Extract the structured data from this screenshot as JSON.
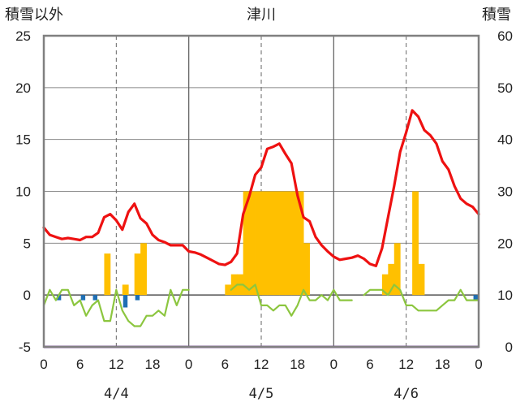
{
  "chart_data": {
    "type": "combo",
    "title": "津川",
    "left_axis_label": "積雪以外",
    "right_axis_label": "積雪",
    "left_ylim": [
      -5,
      25
    ],
    "left_ticks": [
      "25",
      "20",
      "15",
      "10",
      "5",
      "0",
      "-5"
    ],
    "right_ylim": [
      0,
      60
    ],
    "right_ticks": [
      "60",
      "50",
      "40",
      "30",
      "20",
      "10",
      "0"
    ],
    "x_tick_labels": [
      "0",
      "6",
      "12",
      "18",
      "0",
      "6",
      "12",
      "18",
      "0",
      "6",
      "12",
      "18",
      "0"
    ],
    "date_labels": [
      "4/4",
      "4/5",
      "4/6"
    ],
    "colors": {
      "temperature": "#ee1111",
      "snow_depth": "#8cc63f",
      "snowfall": "#ffc000",
      "precipitation": "#1e6fb4",
      "baseline": "#7b3fa0",
      "frame": "#808080"
    },
    "series": [
      {
        "name": "temperature",
        "type": "line",
        "axis": "left",
        "values": [
          6.5,
          5.8,
          5.6,
          5.4,
          5.5,
          5.4,
          5.3,
          5.6,
          5.6,
          6.0,
          7.5,
          7.8,
          7.2,
          6.3,
          8.0,
          8.8,
          7.4,
          6.9,
          5.8,
          5.3,
          5.1,
          4.8,
          4.8,
          4.8,
          4.2,
          4.1,
          3.9,
          3.6,
          3.3,
          3.0,
          2.9,
          3.2,
          4.0,
          7.8,
          9.5,
          11.6,
          12.3,
          14.1,
          14.3,
          14.6,
          13.6,
          12.7,
          9.6,
          7.5,
          7.1,
          5.6,
          4.8,
          4.2,
          3.7,
          3.4,
          3.5,
          3.6,
          3.8,
          3.5,
          3.0,
          2.8,
          4.5,
          7.5,
          10.5,
          13.8,
          15.7,
          17.8,
          17.2,
          15.9,
          15.4,
          14.6,
          12.9,
          12.1,
          10.5,
          9.3,
          8.8,
          8.5,
          7.8
        ]
      },
      {
        "name": "snow_depth",
        "type": "line",
        "axis": "right",
        "values": [
          8,
          11,
          9,
          11,
          11,
          8,
          9,
          6,
          8,
          9,
          5,
          5,
          11,
          7,
          5,
          4,
          4,
          6,
          6,
          7,
          6,
          11,
          8,
          11,
          11,
          null,
          null,
          null,
          null,
          null,
          null,
          11,
          12,
          12,
          11,
          12,
          8,
          8,
          7,
          8,
          8,
          6,
          8,
          11,
          9,
          9,
          10,
          9,
          11,
          9,
          9,
          9,
          null,
          10,
          11,
          11,
          11,
          10,
          12,
          11,
          8,
          8,
          7,
          7,
          7,
          7,
          8,
          9,
          9,
          11,
          9,
          9,
          9
        ]
      },
      {
        "name": "snowfall",
        "type": "bar",
        "axis": "left",
        "values": [
          0,
          0,
          0,
          0,
          0,
          0,
          0,
          0,
          0,
          0,
          4,
          0,
          0,
          1,
          0,
          4,
          5,
          0,
          0,
          0,
          0,
          0,
          0,
          0,
          0,
          0,
          0,
          0,
          0,
          0,
          1,
          2,
          2,
          10,
          10,
          10,
          10,
          10,
          10,
          10,
          10,
          10,
          10,
          5,
          0,
          0,
          0,
          0,
          0,
          0,
          0,
          0,
          0,
          0,
          0,
          0,
          2,
          3,
          5,
          0,
          0,
          10,
          3,
          0,
          0,
          0,
          0,
          0,
          0,
          0,
          0,
          0
        ]
      },
      {
        "name": "precipitation",
        "type": "bar",
        "axis": "left",
        "values": [
          0,
          0,
          -0.5,
          0,
          0,
          0,
          -0.5,
          0,
          -0.5,
          0,
          0,
          0,
          0,
          -1.2,
          0,
          -0.5,
          0,
          0,
          0,
          0,
          0,
          0,
          0,
          0,
          0,
          0,
          0,
          0,
          0,
          0,
          0,
          0,
          0,
          0,
          0,
          0,
          0,
          0,
          0,
          0,
          0,
          0,
          0,
          0,
          0,
          0,
          0,
          0,
          0,
          0,
          0,
          0,
          0,
          0,
          0,
          0,
          0,
          0,
          0,
          0,
          0,
          0,
          0,
          0,
          0,
          0,
          0,
          0,
          0,
          0,
          0,
          -0.5
        ]
      }
    ]
  }
}
